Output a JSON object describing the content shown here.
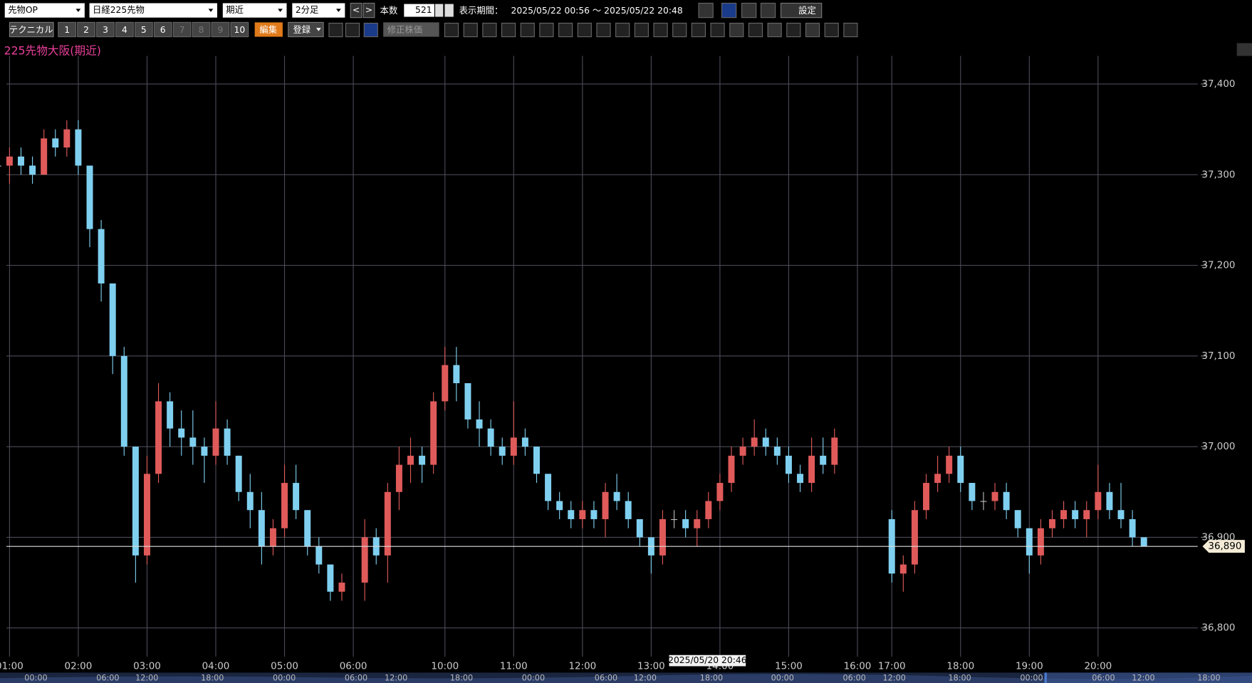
{
  "toolbar": {
    "symbol_type": "先物OP",
    "symbol": "日経225先物",
    "contract": "期近",
    "interval": "2分足",
    "prev": "<",
    "next": ">",
    "bars_label": "本数",
    "bars": "521",
    "period_label": "表示期間：",
    "period": "2025/05/22 00:56 ～ 2025/05/22 20:48",
    "settings": "設定",
    "technical": "テクニカル",
    "presets": [
      "1",
      "2",
      "3",
      "4",
      "5",
      "6",
      "7",
      "8",
      "9",
      "10"
    ],
    "edit": "編集",
    "register": "登録",
    "adjusted": "修正株価"
  },
  "chart_data": {
    "type": "candlestick",
    "title": "225先物大阪(期近)",
    "up_color": "#e05a5a",
    "down_color": "#7fd0f0",
    "grid": true,
    "categories": [
      "00:50",
      "01:00",
      "01:10",
      "01:20",
      "01:30",
      "01:40",
      "01:50",
      "02:00",
      "02:10",
      "02:20",
      "02:30",
      "02:40",
      "02:50",
      "03:00",
      "03:10",
      "03:20",
      "03:30",
      "03:40",
      "03:50",
      "04:00",
      "04:10",
      "04:20",
      "04:30",
      "04:40",
      "04:50",
      "05:00",
      "05:10",
      "05:20",
      "05:30",
      "05:40",
      "05:50",
      "06:00",
      "08:50",
      "09:00",
      "09:10",
      "09:20",
      "09:30",
      "09:40",
      "09:50",
      "10:00",
      "10:10",
      "10:20",
      "10:30",
      "10:40",
      "10:50",
      "11:00",
      "11:10",
      "11:20",
      "11:30",
      "11:40",
      "11:50",
      "12:00",
      "12:10",
      "12:20",
      "12:30",
      "12:40",
      "12:50",
      "13:00",
      "13:10",
      "13:20",
      "13:30",
      "13:40",
      "13:50",
      "14:00",
      "14:10",
      "14:20",
      "14:30",
      "14:40",
      "14:50",
      "15:00",
      "15:10",
      "15:20",
      "15:30",
      "15:40",
      "15:50",
      "16:00",
      "16:10",
      "16:20",
      "17:00",
      "17:10",
      "17:20",
      "17:30",
      "17:40",
      "17:50",
      "18:00",
      "18:10",
      "18:20",
      "18:30",
      "18:40",
      "18:50",
      "19:00",
      "19:10",
      "19:20",
      "19:30",
      "19:40",
      "19:50",
      "20:00",
      "20:10",
      "20:20",
      "20:30",
      "20:40"
    ],
    "open": [
      37310,
      37310,
      37320,
      37310,
      37300,
      37340,
      37330,
      37350,
      37310,
      37240,
      37180,
      37100,
      37000,
      36880,
      36970,
      37050,
      37020,
      37010,
      37000,
      36990,
      37020,
      36990,
      36950,
      36930,
      36890,
      36910,
      36960,
      36930,
      36890,
      36870,
      36840,
      null,
      36850,
      36900,
      36880,
      36950,
      36980,
      36990,
      36980,
      37050,
      37090,
      37070,
      37030,
      37020,
      37000,
      36990,
      37010,
      37000,
      36970,
      36940,
      36930,
      36920,
      36930,
      36920,
      36950,
      36940,
      36920,
      36900,
      36880,
      36920,
      36920,
      36910,
      36920,
      36940,
      36960,
      36990,
      37000,
      37010,
      37000,
      36990,
      36970,
      36960,
      36990,
      36980,
      null,
      null,
      null,
      null,
      36920,
      36860,
      36870,
      36930,
      36960,
      36970,
      36990,
      36960,
      36940,
      36940,
      36950,
      36930,
      36910,
      36880,
      36910,
      36920,
      36930,
      36920,
      36930,
      36950,
      36930,
      36920,
      36900
    ],
    "high": [
      37320,
      37330,
      37330,
      37320,
      37350,
      37350,
      37360,
      37360,
      37310,
      37250,
      37180,
      37110,
      37000,
      36990,
      37070,
      37060,
      37040,
      37040,
      37010,
      37050,
      37030,
      36990,
      36970,
      36950,
      36920,
      36980,
      36980,
      36930,
      36900,
      36870,
      36860,
      null,
      36920,
      36910,
      36960,
      37000,
      37010,
      37000,
      37060,
      37110,
      37110,
      37070,
      37050,
      37030,
      37010,
      37050,
      37020,
      37000,
      36970,
      36950,
      36940,
      36940,
      36940,
      36960,
      36970,
      36950,
      36920,
      36900,
      36930,
      36930,
      36930,
      36930,
      36950,
      36970,
      37000,
      37010,
      37030,
      37020,
      37010,
      37000,
      36980,
      37010,
      37010,
      37020,
      null,
      null,
      null,
      null,
      36930,
      36880,
      36940,
      36970,
      36990,
      37000,
      37000,
      36960,
      36950,
      36960,
      36960,
      36930,
      36910,
      36920,
      36930,
      36940,
      36940,
      36940,
      36980,
      36960,
      36960,
      36930,
      36900
    ],
    "low": [
      37300,
      37290,
      37300,
      37290,
      37300,
      37320,
      37320,
      37300,
      37220,
      37160,
      37080,
      36990,
      36850,
      36870,
      36960,
      37000,
      36990,
      36980,
      36960,
      36980,
      36980,
      36940,
      36910,
      36870,
      36880,
      36900,
      36920,
      36880,
      36860,
      36830,
      36830,
      null,
      36830,
      36870,
      36850,
      36930,
      36960,
      36960,
      36970,
      37040,
      37050,
      37020,
      37000,
      36990,
      36980,
      36980,
      36990,
      36960,
      36930,
      36920,
      36910,
      36910,
      36910,
      36900,
      36930,
      36910,
      36890,
      36860,
      36870,
      36910,
      36900,
      36890,
      36910,
      36930,
      36950,
      36980,
      36990,
      36990,
      36980,
      36960,
      36950,
      36950,
      36970,
      36970,
      null,
      null,
      null,
      null,
      36850,
      36840,
      36860,
      36920,
      36950,
      36960,
      36950,
      36930,
      36930,
      36930,
      36920,
      36900,
      36860,
      36870,
      36900,
      36910,
      36910,
      36900,
      36920,
      36920,
      36910,
      36890,
      36890
    ],
    "close": [
      37310,
      37320,
      37310,
      37300,
      37340,
      37330,
      37350,
      37310,
      37240,
      37180,
      37100,
      37000,
      36880,
      36970,
      37050,
      37020,
      37010,
      37000,
      36990,
      37020,
      36990,
      36950,
      36930,
      36890,
      36910,
      36960,
      36930,
      36890,
      36870,
      36840,
      36850,
      null,
      36900,
      36880,
      36950,
      36980,
      36990,
      36980,
      37050,
      37090,
      37070,
      37030,
      37020,
      37000,
      36990,
      37010,
      37000,
      36970,
      36940,
      36930,
      36920,
      36930,
      36920,
      36950,
      36940,
      36920,
      36900,
      36880,
      36920,
      36920,
      36910,
      36920,
      36940,
      36960,
      36990,
      37000,
      37010,
      37000,
      36990,
      36970,
      36960,
      36990,
      36980,
      37010,
      null,
      null,
      null,
      null,
      36860,
      36870,
      36930,
      36960,
      36970,
      36990,
      36960,
      36940,
      36940,
      36950,
      36930,
      36910,
      36880,
      36910,
      36920,
      36930,
      36920,
      36930,
      36950,
      36930,
      36920,
      36900,
      36890
    ],
    "xticks": [
      "01:00",
      "02:00",
      "03:00",
      "04:00",
      "05:00",
      "06:00",
      "10:00",
      "11:00",
      "12:00",
      "13:00",
      "14:00",
      "15:00",
      "16:00",
      "17:00",
      "18:00",
      "19:00",
      "20:00"
    ],
    "ylim": [
      36771,
      37431
    ],
    "yticks": [
      {
        "value": 36800,
        "label": "36,800"
      },
      {
        "value": 36900,
        "label": "36,900"
      },
      {
        "value": 37000,
        "label": "37,000"
      },
      {
        "value": 37100,
        "label": "37,100"
      },
      {
        "value": 37200,
        "label": "37,200"
      },
      {
        "value": 37300,
        "label": "37,300"
      },
      {
        "value": 37400,
        "label": "37,400"
      }
    ],
    "last_price": {
      "value": 36890,
      "label": "36,890"
    },
    "cursor_label": "2025/05/20 20:46"
  },
  "navigator": {
    "labels": [
      "00:00",
      "06:00",
      "12:00",
      "18:00",
      "00:00",
      "06:00",
      "12:00",
      "18:00",
      "00:00",
      "06:00",
      "12:00",
      "18:00",
      "00:00",
      "06:00",
      "12:00",
      "18:00",
      "00:00",
      "06:00",
      "12:00",
      "18:00"
    ]
  }
}
